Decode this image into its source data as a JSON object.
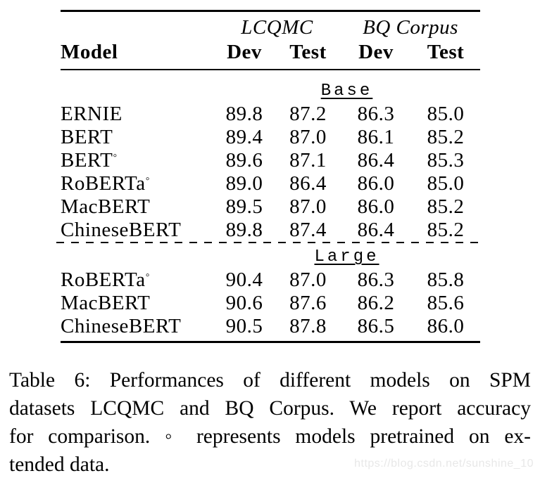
{
  "colors": {
    "background": "#ffffff",
    "text": "#000000",
    "rule": "#000000",
    "watermark": "#e8e8e8"
  },
  "table": {
    "col_groups": [
      {
        "label": "LCQMC"
      },
      {
        "label": "BQ Corpus"
      }
    ],
    "headers": {
      "model": "Model",
      "cols": [
        "Dev",
        "Test",
        "Dev",
        "Test"
      ]
    },
    "sections": [
      {
        "label": "Base",
        "rows": [
          {
            "model": "ERNIE",
            "marker": "",
            "cells": [
              {
                "v": "89.8"
              },
              {
                "v": "87.2"
              },
              {
                "v": "86.3"
              },
              {
                "v": "85.0"
              }
            ]
          },
          {
            "model": "BERT",
            "marker": "",
            "cells": [
              {
                "v": "89.4"
              },
              {
                "v": "87.0"
              },
              {
                "v": "86.1"
              },
              {
                "v": "85.2"
              }
            ]
          },
          {
            "model": "BERT",
            "marker": "◦",
            "cells": [
              {
                "v": "89.6"
              },
              {
                "v": "87.1"
              },
              {
                "v": "86.4",
                "b": true
              },
              {
                "v": "85.3",
                "b": true
              }
            ]
          },
          {
            "model": "RoBERTa",
            "marker": "◦",
            "cells": [
              {
                "v": "89.0"
              },
              {
                "v": "86.4"
              },
              {
                "v": "86.0"
              },
              {
                "v": "85.0"
              }
            ]
          },
          {
            "model": "MacBERT",
            "marker": "",
            "cells": [
              {
                "v": "89.5"
              },
              {
                "v": "87.0"
              },
              {
                "v": "86.0"
              },
              {
                "v": "85.2"
              }
            ]
          },
          {
            "model": "ChineseBERT",
            "marker": "",
            "cells": [
              {
                "v": "89.8",
                "b": true
              },
              {
                "v": "87.4",
                "b": true
              },
              {
                "v": "86.4",
                "b": true
              },
              {
                "v": "85.2"
              }
            ]
          }
        ]
      },
      {
        "label": "Large",
        "rows": [
          {
            "model": "RoBERTa",
            "marker": "◦",
            "cells": [
              {
                "v": "90.4"
              },
              {
                "v": "87.0"
              },
              {
                "v": "86.3"
              },
              {
                "v": "85.8"
              }
            ]
          },
          {
            "model": "MacBERT",
            "marker": "",
            "cells": [
              {
                "v": "90.6",
                "b": true
              },
              {
                "v": "87.6"
              },
              {
                "v": "86.2"
              },
              {
                "v": "85.6"
              }
            ]
          },
          {
            "model": "ChineseBERT",
            "marker": "",
            "cells": [
              {
                "v": "90.5"
              },
              {
                "v": "87.8",
                "b": true
              },
              {
                "v": "86.5",
                "b": true
              },
              {
                "v": "86.0",
                "b": true
              }
            ]
          }
        ]
      }
    ]
  },
  "caption": {
    "lines": [
      "Table 6: Performances of different models on SPM",
      "datasets LCQMC and BQ Corpus. We report accuracy",
      "for comparison. ◦ represents models pretrained on ex-",
      "tended data."
    ]
  },
  "watermark": {
    "text": "https://blog.csdn.net/sunshine_10"
  }
}
